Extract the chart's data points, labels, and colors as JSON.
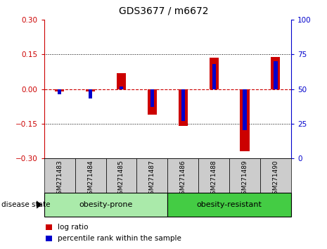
{
  "title": "GDS3677 / m6672",
  "samples": [
    "GSM271483",
    "GSM271484",
    "GSM271485",
    "GSM271487",
    "GSM271486",
    "GSM271488",
    "GSM271489",
    "GSM271490"
  ],
  "log_ratio": [
    -0.01,
    -0.012,
    0.07,
    -0.11,
    -0.16,
    0.135,
    -0.27,
    0.14
  ],
  "percentile_rank": [
    46,
    43,
    52,
    37,
    27,
    68,
    20,
    70
  ],
  "ylim_left": [
    -0.3,
    0.3
  ],
  "ylim_right": [
    0,
    100
  ],
  "yticks_left": [
    -0.3,
    -0.15,
    0,
    0.15,
    0.3
  ],
  "yticks_right": [
    0,
    25,
    50,
    75,
    100
  ],
  "red_color": "#CC0000",
  "blue_color": "#0000CC",
  "groups": [
    {
      "label": "obesity-prone",
      "indices": [
        0,
        1,
        2,
        3
      ],
      "color": "#aaeaaa"
    },
    {
      "label": "obesity-resistant",
      "indices": [
        4,
        5,
        6,
        7
      ],
      "color": "#44cc44"
    }
  ],
  "disease_state_label": "disease state",
  "legend_items": [
    {
      "label": "log ratio",
      "color": "#CC0000"
    },
    {
      "label": "percentile rank within the sample",
      "color": "#0000CC"
    }
  ],
  "bg_color": "#ffffff",
  "tick_box_color": "#cccccc"
}
